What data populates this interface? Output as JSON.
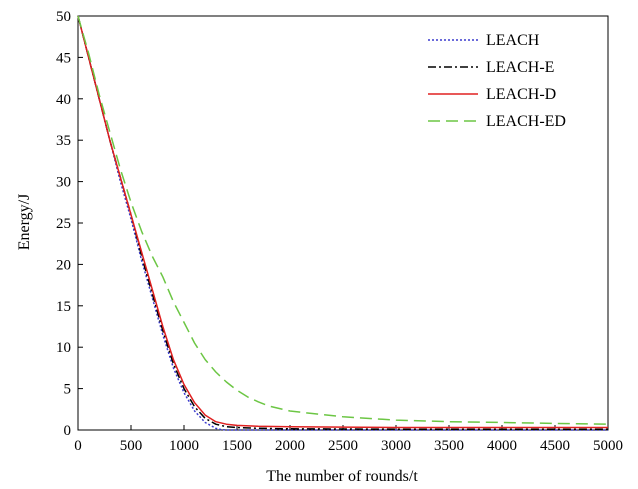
{
  "chart_data": {
    "type": "line",
    "title": "",
    "xlabel": "The number of rounds/t",
    "ylabel": "Energy/J",
    "xlim": [
      0,
      5000
    ],
    "ylim": [
      0,
      50
    ],
    "xticks": [
      0,
      500,
      1000,
      1500,
      2000,
      2500,
      3000,
      3500,
      4000,
      4500,
      5000
    ],
    "yticks": [
      0,
      5,
      10,
      15,
      20,
      25,
      30,
      35,
      40,
      45,
      50
    ],
    "grid": false,
    "legend_position": "top-right",
    "series": [
      {
        "name": "LEACH",
        "color": "#3a3acd",
        "dash": "dotted",
        "x": [
          0,
          100,
          200,
          300,
          400,
          500,
          600,
          700,
          800,
          900,
          1000,
          1100,
          1200,
          1300,
          1350,
          1400,
          1600,
          2000,
          3000,
          4000,
          5000
        ],
        "y": [
          50,
          45,
          40,
          35,
          30,
          25.5,
          20.5,
          16,
          11.5,
          7.5,
          4.5,
          2.3,
          0.9,
          0.2,
          0.05,
          0,
          0,
          0,
          0,
          0,
          0
        ]
      },
      {
        "name": "LEACH-E",
        "color": "#000000",
        "dash": "dashdot",
        "x": [
          0,
          100,
          200,
          300,
          400,
          500,
          600,
          700,
          800,
          900,
          1000,
          1100,
          1200,
          1300,
          1400,
          1500,
          1700,
          2000,
          2500,
          3000,
          4000,
          5000
        ],
        "y": [
          50,
          45,
          40,
          35,
          30.5,
          26,
          21,
          16.5,
          12,
          8,
          5,
          2.8,
          1.4,
          0.7,
          0.4,
          0.3,
          0.2,
          0.15,
          0.12,
          0.1,
          0.1,
          0.1
        ]
      },
      {
        "name": "LEACH-D",
        "color": "#e02020",
        "dash": "solid",
        "x": [
          0,
          100,
          200,
          300,
          400,
          500,
          600,
          700,
          800,
          900,
          1000,
          1100,
          1200,
          1300,
          1400,
          1500,
          1700,
          2000,
          2500,
          3000,
          4000,
          5000
        ],
        "y": [
          50,
          45,
          40,
          35,
          30.5,
          26,
          21.5,
          17,
          12.5,
          8.5,
          5.5,
          3.3,
          1.8,
          1.0,
          0.7,
          0.55,
          0.45,
          0.4,
          0.35,
          0.3,
          0.3,
          0.3
        ]
      },
      {
        "name": "LEACH-ED",
        "color": "#6cc644",
        "dash": "longdash",
        "x": [
          0,
          100,
          200,
          300,
          400,
          500,
          600,
          700,
          800,
          900,
          1000,
          1100,
          1200,
          1300,
          1400,
          1500,
          1600,
          1700,
          1800,
          2000,
          2200,
          2500,
          3000,
          3500,
          4000,
          4500,
          5000
        ],
        "y": [
          50,
          45.5,
          40.5,
          36,
          31.5,
          27.5,
          24,
          21,
          18.5,
          15.5,
          13,
          10.5,
          8.5,
          7,
          5.8,
          4.8,
          4,
          3.4,
          2.9,
          2.3,
          2,
          1.6,
          1.2,
          1.0,
          0.9,
          0.8,
          0.7
        ]
      }
    ]
  }
}
